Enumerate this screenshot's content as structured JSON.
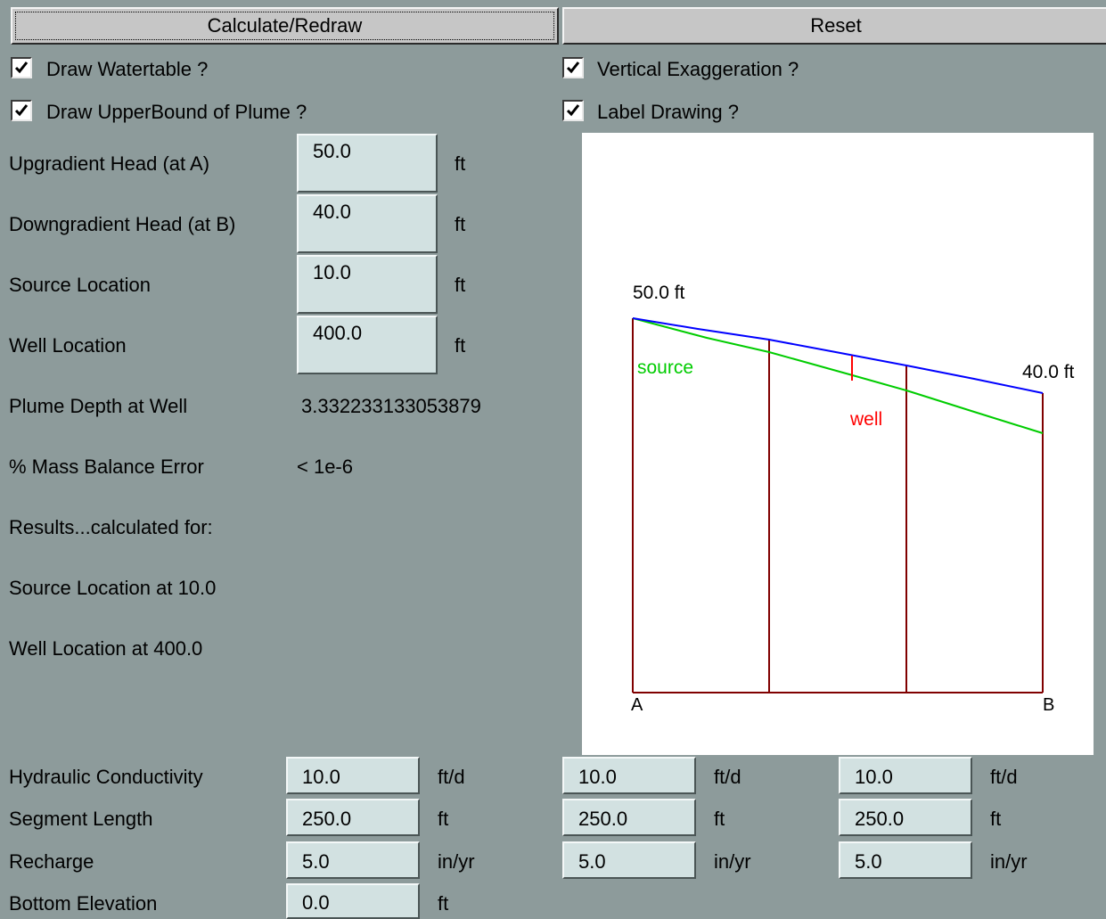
{
  "buttons": {
    "calculate": "Calculate/Redraw",
    "reset": "Reset"
  },
  "checkboxes": {
    "draw_watertable": {
      "label": "Draw Watertable ?",
      "checked": true
    },
    "vertical_exaggeration": {
      "label": "Vertical Exaggeration ?",
      "checked": true
    },
    "draw_upperbound": {
      "label": "Draw UpperBound of Plume ?",
      "checked": true
    },
    "label_drawing": {
      "label": "Label Drawing ?",
      "checked": true
    }
  },
  "inputs": {
    "upgradient_head": {
      "label": "Upgradient Head (at A)",
      "value": "50.0",
      "unit": "ft"
    },
    "downgradient_head": {
      "label": "Downgradient Head (at B)",
      "value": "40.0",
      "unit": "ft"
    },
    "source_location": {
      "label": "Source Location",
      "value": "10.0",
      "unit": "ft"
    },
    "well_location": {
      "label": "Well Location",
      "value": "400.0",
      "unit": "ft"
    }
  },
  "results": {
    "plume_depth_label": "Plume Depth at Well",
    "plume_depth_value": "3.332233133053879",
    "mass_balance_label": "% Mass Balance Error",
    "mass_balance_value": "< 1e-6",
    "calculated_for": "Results...calculated for:",
    "source_at": "Source Location at 10.0",
    "well_at": "Well Location at 400.0"
  },
  "drawing": {
    "head_a_label": "50.0 ft",
    "head_b_label": "40.0 ft",
    "source_label": "source",
    "well_label": "well",
    "point_a": "A",
    "point_b": "B",
    "colors": {
      "watertable": "#0000ff",
      "plume": "#00cc00",
      "well": "#ff0000",
      "segments": "#800000"
    }
  },
  "segments": {
    "labels": {
      "hydraulic_conductivity": "Hydraulic Conductivity",
      "segment_length": "Segment Length",
      "recharge": "Recharge",
      "bottom_elevation": "Bottom Elevation"
    },
    "columns": [
      {
        "k": "10.0",
        "k_unit": "ft/d",
        "length": "250.0",
        "length_unit": "ft",
        "recharge": "5.0",
        "recharge_unit": "in/yr"
      },
      {
        "k": "10.0",
        "k_unit": "ft/d",
        "length": "250.0",
        "length_unit": "ft",
        "recharge": "5.0",
        "recharge_unit": "in/yr"
      },
      {
        "k": "10.0",
        "k_unit": "ft/d",
        "length": "250.0",
        "length_unit": "ft",
        "recharge": "5.0",
        "recharge_unit": "in/yr"
      }
    ],
    "bottom_elevation": {
      "value": "0.0",
      "unit": "ft"
    }
  }
}
